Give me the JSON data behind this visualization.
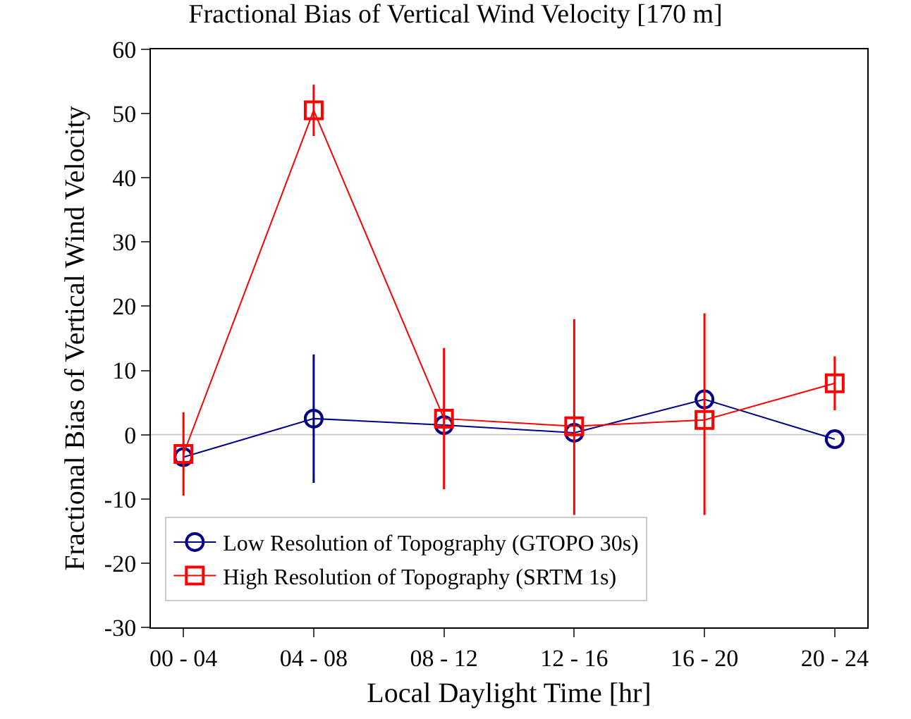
{
  "chart_data": {
    "type": "line",
    "title": "Fractional Bias of Vertical Wind Velocity [170 m]",
    "xlabel": "Local Daylight Time [hr]",
    "ylabel": "Fractional Bias of Vertical Wind Velocity",
    "categories": [
      "00 - 04",
      "04 - 08",
      "08 - 12",
      "12 - 16",
      "16 - 20",
      "20 - 24"
    ],
    "series": [
      {
        "name": "Low Resolution of Topography (GTOPO 30s)",
        "color": "#00008b",
        "marker": "circle",
        "values": [
          -3.5,
          2.5,
          1.5,
          0.3,
          5.5,
          -0.7
        ],
        "errors": [
          null,
          10,
          null,
          null,
          null,
          null
        ]
      },
      {
        "name": "High Resolution of Topography (SRTM 1s)",
        "color": "#ff0000",
        "marker": "square",
        "values": [
          -3,
          50.5,
          2.5,
          1.3,
          2.3,
          8
        ],
        "errors": [
          6.5,
          4,
          11,
          [
            -12.5,
            18
          ],
          [
            -12.5,
            18.9
          ],
          4.2
        ]
      }
    ],
    "ylim": [
      -30,
      60
    ],
    "yticks": [
      -30,
      -20,
      -10,
      0,
      10,
      20,
      30,
      40,
      50,
      60
    ],
    "ref_lines": [
      {
        "axis": "y",
        "value": 0,
        "color": "#c8c8c8"
      }
    ],
    "grid": false,
    "legend": "bottom",
    "line_style": "solid"
  }
}
